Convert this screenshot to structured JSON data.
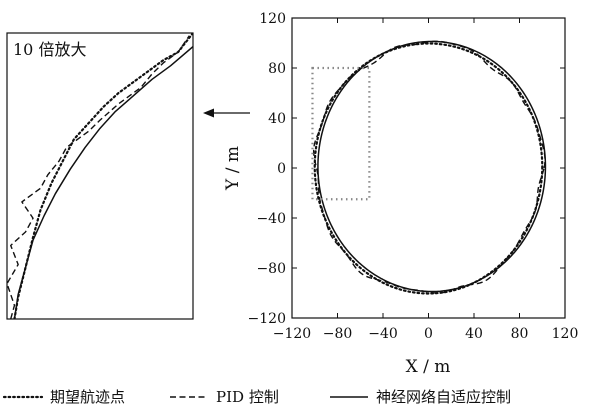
{
  "chart_data": {
    "type": "line",
    "main": {
      "xlabel": "X / m",
      "ylabel": "Y / m",
      "xlim": [
        -120,
        120
      ],
      "ylim": [
        -120,
        120
      ],
      "xticks": [
        -120,
        -80,
        -40,
        0,
        40,
        80,
        120
      ],
      "yticks": [
        -120,
        -80,
        -40,
        0,
        40,
        80,
        120
      ],
      "xtick_labels": [
        "−120",
        "−80",
        "−40",
        "0",
        "40",
        "80",
        "120"
      ],
      "ytick_labels": [
        "−120",
        "−80",
        "−40",
        "0",
        "40",
        "80",
        "120"
      ],
      "grid": false,
      "circle_center": [
        0,
        0
      ],
      "circle_radius": 100,
      "zoom_box": {
        "x": [
          -102,
          -52
        ],
        "y": [
          -25,
          80
        ]
      }
    },
    "inset": {
      "title": "10 倍放大",
      "magnification": 10
    },
    "series": [
      {
        "name": "期望航迹点",
        "style": "dotted",
        "x": [
          -100,
          -99,
          -97,
          -95,
          -93,
          -90,
          -87,
          -84,
          -80,
          -76,
          -72,
          -68,
          -64,
          -60,
          -56,
          -52
        ],
        "y": [
          -25,
          -17,
          -6,
          5,
          15,
          25,
          33,
          41,
          47,
          53,
          58,
          62,
          66,
          70,
          73,
          80
        ]
      },
      {
        "name": "PID 控制",
        "style": "dashed",
        "x": [
          -101,
          -100,
          -102,
          -99,
          -101,
          -97,
          -95,
          -98,
          -93,
          -91,
          -88,
          -86,
          -80,
          -77,
          -72,
          -66,
          -63,
          -60,
          -56,
          -53
        ],
        "y": [
          -25,
          -20,
          -12,
          -5,
          2,
          7,
          12,
          18,
          23,
          28,
          33,
          38,
          44,
          48,
          54,
          60,
          65,
          69,
          73,
          79
        ]
      },
      {
        "name": "神经网络自适应控制",
        "style": "solid",
        "x": [
          -100,
          -99,
          -97,
          -95,
          -92,
          -89,
          -85,
          -81,
          -77,
          -73,
          -68,
          -63,
          -58,
          -52
        ],
        "y": [
          -25,
          -16,
          -6,
          4,
          13,
          21,
          30,
          38,
          45,
          51,
          57,
          63,
          68,
          75
        ]
      }
    ],
    "legend_placement": "bottom"
  }
}
